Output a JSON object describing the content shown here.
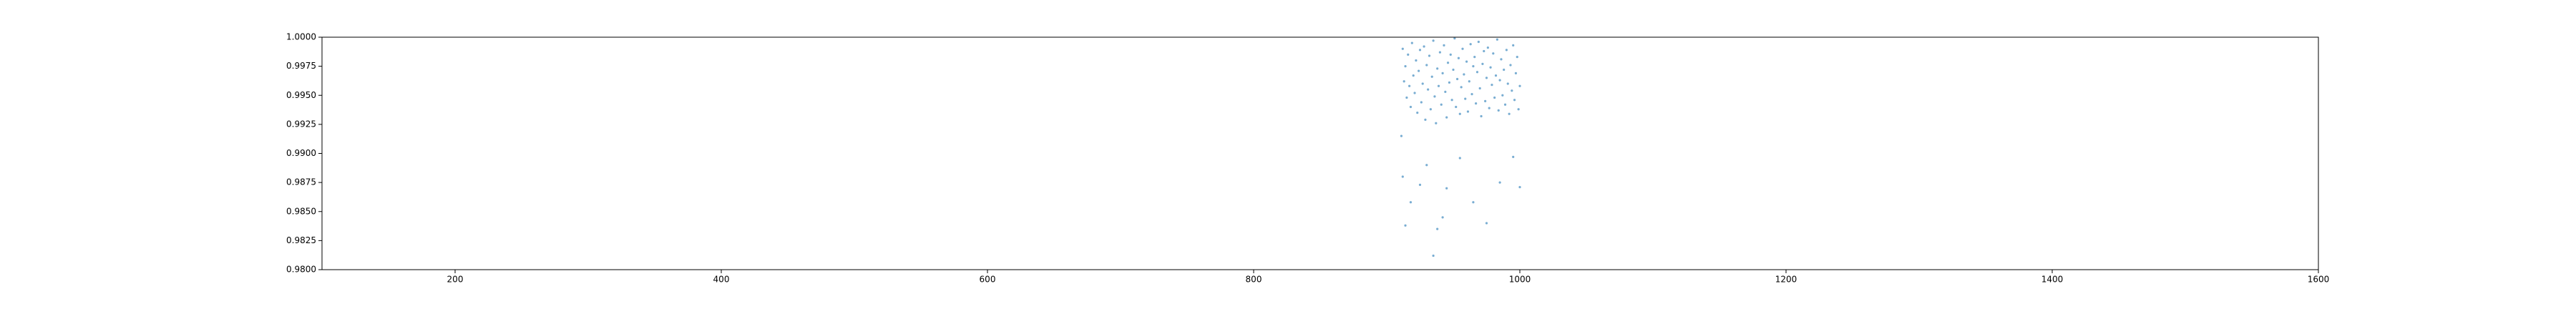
{
  "chart_data": {
    "type": "scatter",
    "color": "#1f77b4",
    "xlim": [
      100,
      1600
    ],
    "xticks": [
      200,
      400,
      600,
      800,
      1000,
      1200,
      1400,
      1600
    ],
    "ylim": [
      0.98,
      1.0
    ],
    "yticks": [
      {
        "value": 0.98,
        "label": "0.9800"
      },
      {
        "value": 0.9825,
        "label": "0.9825"
      },
      {
        "value": 0.985,
        "label": "0.9850"
      },
      {
        "value": 0.9875,
        "label": "0.9875"
      },
      {
        "value": 0.99,
        "label": "0.9900"
      },
      {
        "value": 0.9925,
        "label": "0.9925"
      },
      {
        "value": 0.995,
        "label": "0.9950"
      },
      {
        "value": 0.9975,
        "label": "0.9975"
      },
      {
        "value": 1.0,
        "label": "1.0000"
      }
    ],
    "x": [
      912,
      913,
      914,
      915,
      916,
      917,
      918,
      919,
      920,
      921,
      922,
      923,
      924,
      925,
      926,
      927,
      928,
      929,
      930,
      931,
      932,
      933,
      934,
      935,
      936,
      937,
      938,
      939,
      940,
      941,
      942,
      943,
      944,
      945,
      946,
      947,
      948,
      949,
      950,
      951,
      952,
      953,
      954,
      955,
      956,
      957,
      958,
      959,
      960,
      961,
      962,
      963,
      964,
      965,
      966,
      967,
      968,
      969,
      970,
      971,
      972,
      973,
      974,
      975,
      976,
      977,
      978,
      979,
      980,
      981,
      982,
      983,
      984,
      985,
      986,
      987,
      988,
      989,
      990,
      991,
      992,
      993,
      994,
      995,
      996,
      997,
      998,
      999,
      1000,
      911,
      912,
      914,
      918,
      925,
      930,
      935,
      938,
      942,
      945,
      955,
      965,
      975,
      985,
      995,
      1000
    ],
    "values": [
      0.999,
      0.9962,
      0.9975,
      0.9948,
      0.9985,
      0.9958,
      0.994,
      0.9995,
      0.9967,
      0.9952,
      0.998,
      0.9935,
      0.9971,
      0.9989,
      0.9944,
      0.996,
      0.9992,
      0.9929,
      0.9976,
      0.9955,
      0.9984,
      0.9938,
      0.9966,
      0.9997,
      0.9949,
      0.9926,
      0.9973,
      0.9958,
      0.9987,
      0.9942,
      0.9969,
      0.9993,
      0.9953,
      0.9931,
      0.9978,
      0.9961,
      0.9985,
      0.9946,
      0.9972,
      0.9999,
      0.994,
      0.9964,
      0.9982,
      0.9934,
      0.9957,
      0.999,
      0.9968,
      0.9947,
      0.9979,
      0.9936,
      0.9962,
      0.9994,
      0.9951,
      0.9975,
      0.9983,
      0.9943,
      0.997,
      0.9996,
      0.9956,
      0.9932,
      0.9977,
      0.9988,
      0.9945,
      0.9965,
      0.9991,
      0.9939,
      0.9974,
      0.9959,
      0.9986,
      0.9948,
      0.9967,
      0.9998,
      0.9937,
      0.9963,
      0.9981,
      0.995,
      0.9972,
      0.9942,
      0.9989,
      0.996,
      0.9934,
      0.9976,
      0.9954,
      0.9993,
      0.9946,
      0.9969,
      0.9983,
      0.9938,
      0.9958,
      0.9915,
      0.988,
      0.9838,
      0.9858,
      0.9873,
      0.989,
      0.9812,
      0.9835,
      0.9845,
      0.987,
      0.9896,
      0.9858,
      0.984,
      0.9875,
      0.9897,
      0.9871
    ]
  }
}
